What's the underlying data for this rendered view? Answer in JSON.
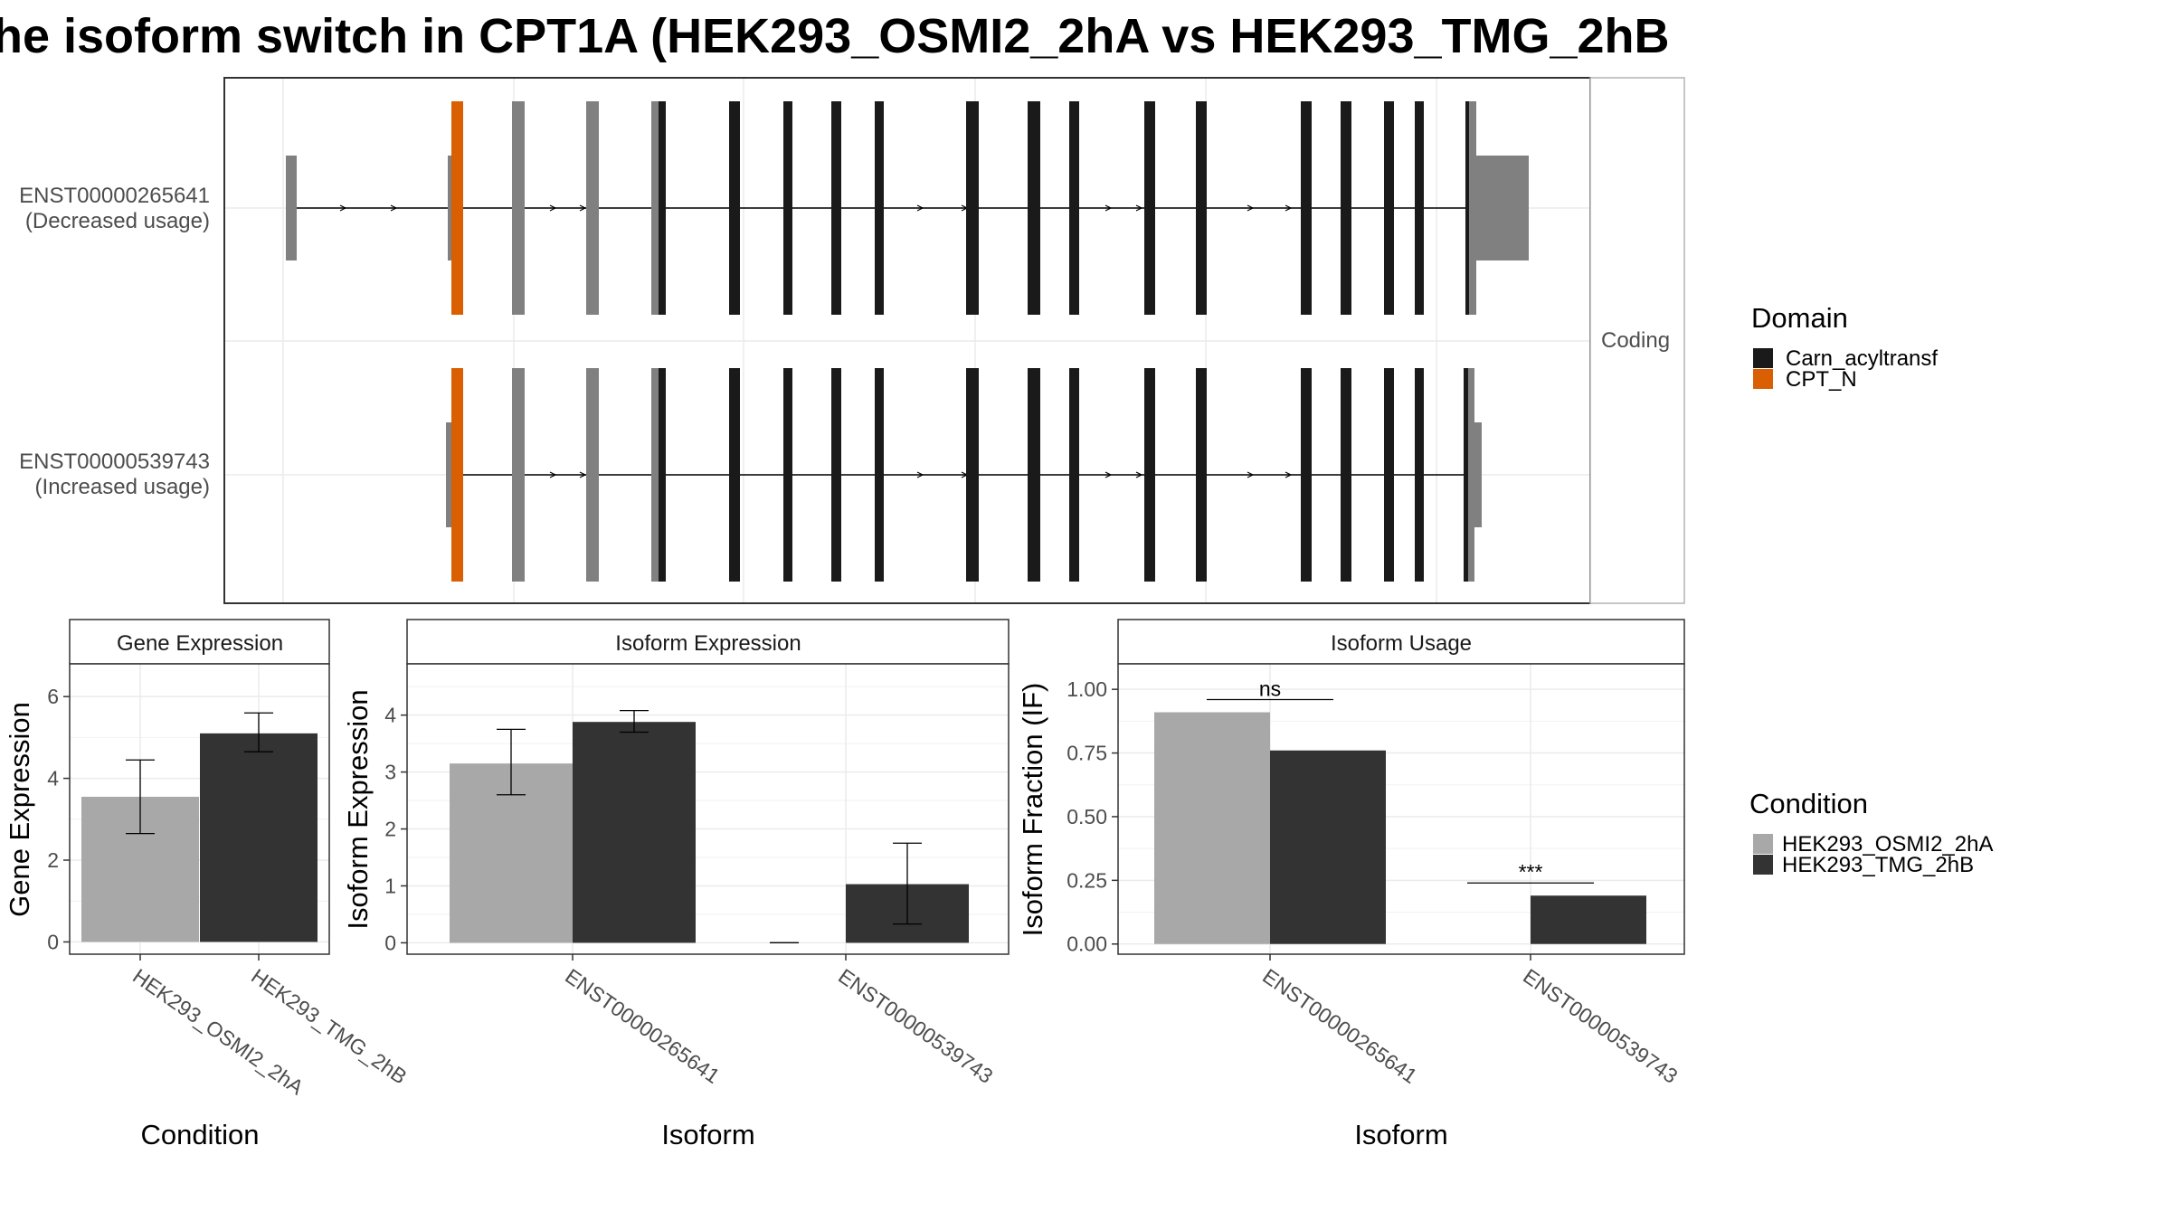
{
  "title": "he isoform switch in CPT1A (HEK293_OSMI2_2hA vs HEK293_TMG_2hB",
  "colors": {
    "domain_carn": "#1a1a1a",
    "domain_cpt": "#d95f02",
    "exon_grey": "#808080",
    "cond_a": "#a8a8a8",
    "cond_b": "#333333"
  },
  "structure": {
    "strip_label": "Coding",
    "transcripts": [
      {
        "id": "ENST00000265641",
        "note": "(Decreased usage)"
      },
      {
        "id": "ENST00000539743",
        "note": "(Increased usage)"
      }
    ]
  },
  "legends": {
    "domain": {
      "title": "Domain",
      "items": [
        "Carn_acyltransf",
        "CPT_N"
      ]
    },
    "condition": {
      "title": "Condition",
      "items": [
        "HEK293_OSMI2_2hA",
        "HEK293_TMG_2hB"
      ]
    }
  },
  "chart_data": [
    {
      "type": "bar",
      "title": "Gene Expression",
      "xlabel": "Condition",
      "ylabel": "Gene Expression",
      "categories": [
        "HEK293_OSMI2_2hA",
        "HEK293_TMG_2hB"
      ],
      "values": [
        3.55,
        5.1
      ],
      "err_low": [
        2.65,
        4.65
      ],
      "err_high": [
        4.45,
        5.6
      ],
      "ylim": [
        -0.3,
        6.8
      ],
      "yticks": [
        0,
        2,
        4,
        6
      ],
      "ytick_labels": [
        "0",
        "2",
        "4",
        "6"
      ]
    },
    {
      "type": "bar",
      "title": "Isoform Expression",
      "xlabel": "Isoform",
      "ylabel": "Isoform Expression",
      "categories": [
        "ENST00000265641",
        "ENST00000539743"
      ],
      "series": [
        {
          "name": "HEK293_OSMI2_2hA",
          "values": [
            3.15,
            0.0
          ],
          "err_low": [
            2.6,
            0.0
          ],
          "err_high": [
            3.75,
            0.0
          ]
        },
        {
          "name": "HEK293_TMG_2hB",
          "values": [
            3.88,
            1.03
          ],
          "err_low": [
            3.7,
            0.33
          ],
          "err_high": [
            4.08,
            1.75
          ]
        }
      ],
      "ylim": [
        -0.2,
        4.9
      ],
      "yticks": [
        0,
        1,
        2,
        3,
        4
      ],
      "ytick_labels": [
        "0",
        "1",
        "2",
        "3",
        "4"
      ]
    },
    {
      "type": "bar",
      "title": "Isoform Usage",
      "xlabel": "Isoform",
      "ylabel": "Isoform Fraction (IF)",
      "categories": [
        "ENST00000265641",
        "ENST00000539743"
      ],
      "series": [
        {
          "name": "HEK293_OSMI2_2hA",
          "values": [
            0.91,
            0.0
          ]
        },
        {
          "name": "HEK293_TMG_2hB",
          "values": [
            0.76,
            0.19
          ]
        }
      ],
      "significance": [
        "ns",
        "***"
      ],
      "ylim": [
        -0.04,
        1.1
      ],
      "yticks": [
        0,
        0.25,
        0.5,
        0.75,
        1.0
      ],
      "ytick_labels": [
        "0.00",
        "0.25",
        "0.50",
        "0.75",
        "1.00"
      ]
    }
  ]
}
